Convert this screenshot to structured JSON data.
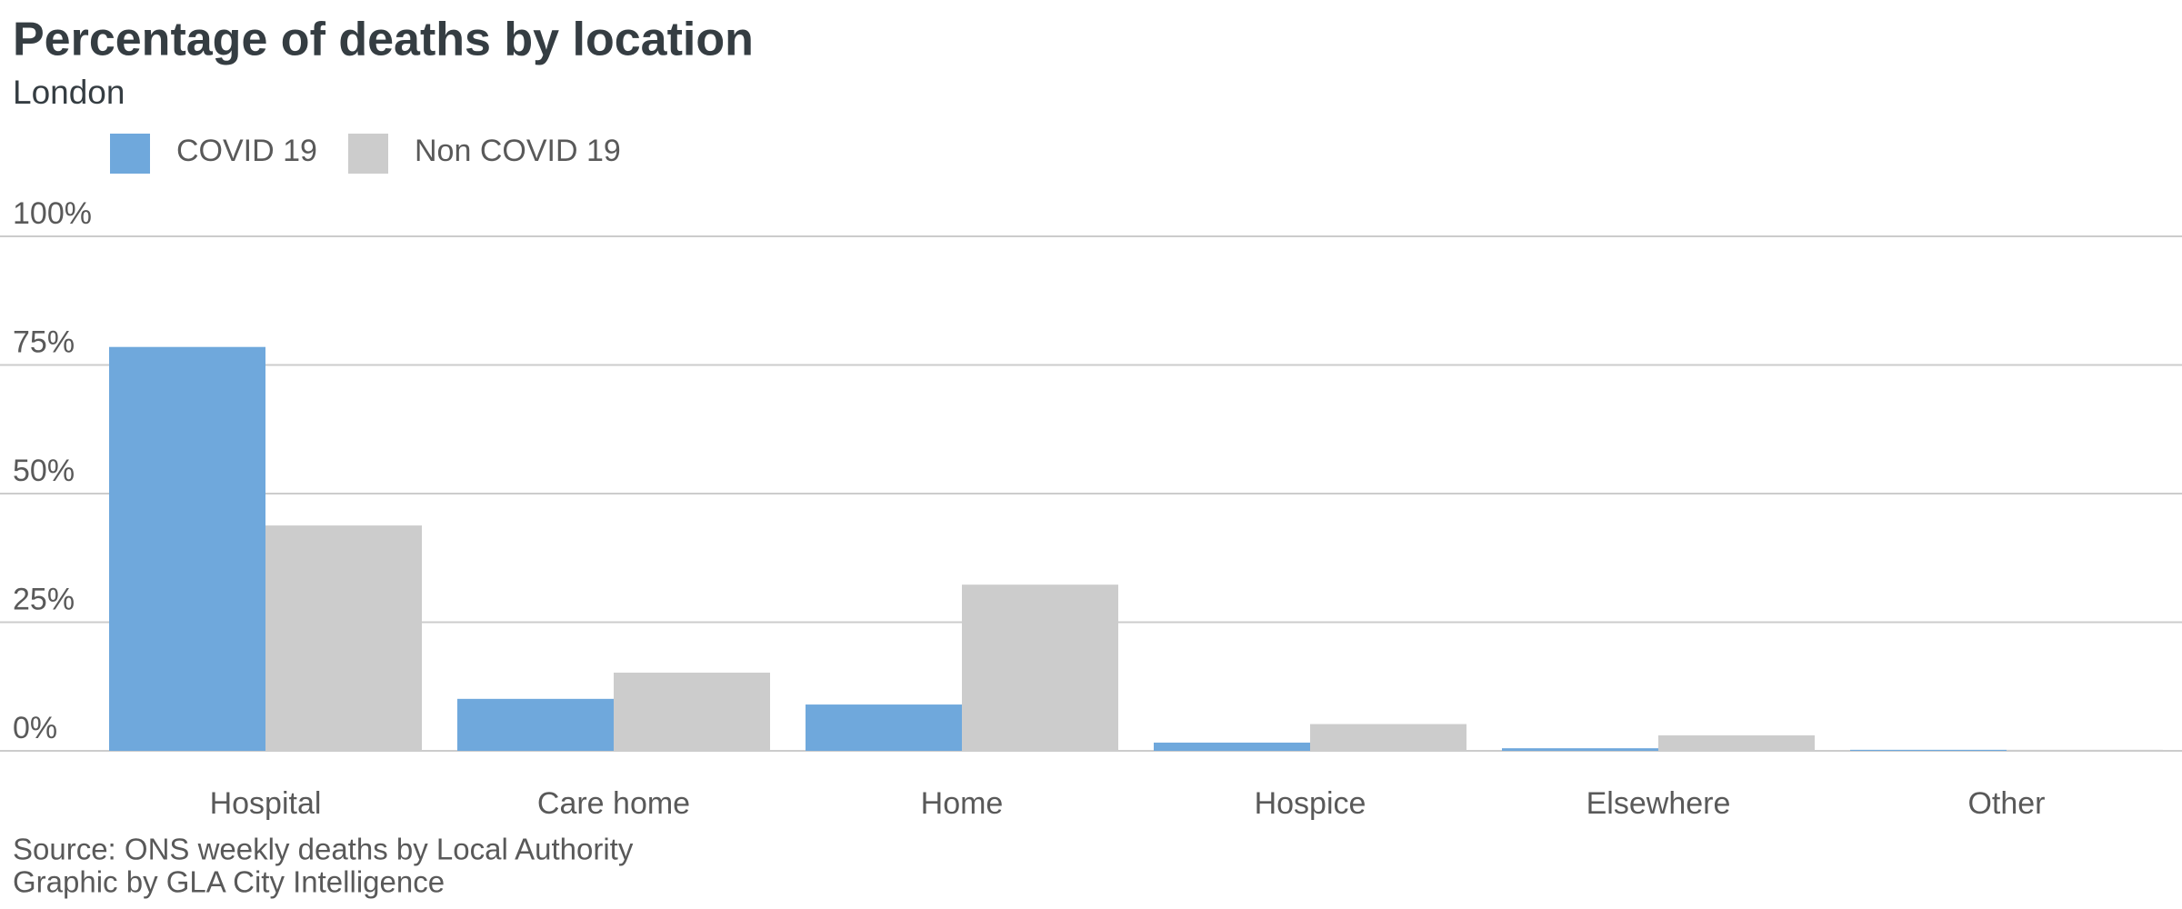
{
  "chart_data": {
    "type": "bar",
    "title": "Percentage of deaths by location",
    "subtitle": "London",
    "categories": [
      "Hospital",
      "Care home",
      "Home",
      "Hospice",
      "Elsewhere",
      "Other"
    ],
    "series": [
      {
        "name": "COVID 19",
        "color": "#6fa8dc",
        "values": [
          78.5,
          10.1,
          9.0,
          1.6,
          0.5,
          0.2
        ]
      },
      {
        "name": "Non COVID 19",
        "color": "#cccccc",
        "values": [
          43.8,
          15.2,
          32.3,
          5.2,
          3.0,
          0.2
        ]
      }
    ],
    "ylim": [
      0,
      100
    ],
    "yticks": [
      {
        "value": 0,
        "label": "0%"
      },
      {
        "value": 25,
        "label": "25%"
      },
      {
        "value": 50,
        "label": "50%"
      },
      {
        "value": 75,
        "label": "75%"
      },
      {
        "value": 100,
        "label": "100%"
      }
    ],
    "grid": true,
    "source": [
      "Source: ONS weekly deaths by Local Authority",
      "Graphic by GLA City Intelligence"
    ]
  }
}
